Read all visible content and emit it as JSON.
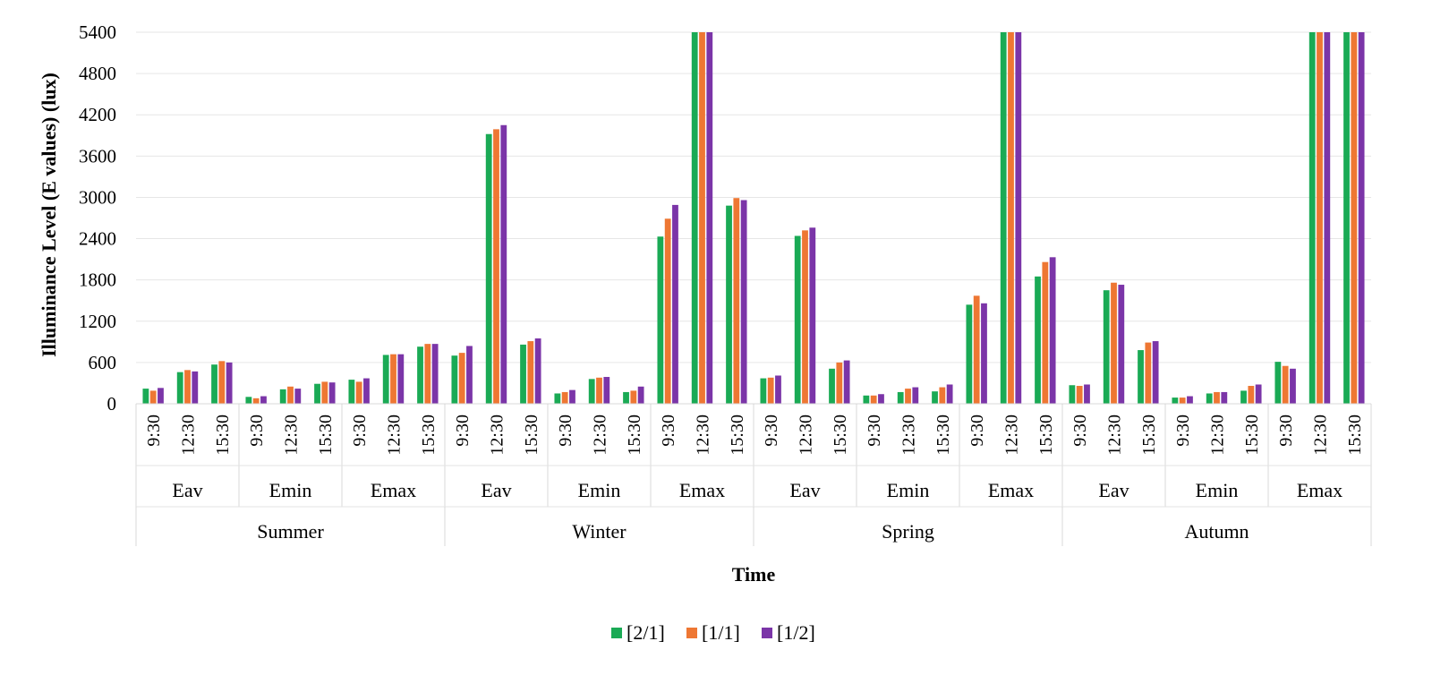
{
  "chart_data": {
    "type": "bar",
    "xlabel": "Time",
    "ylabel": "Illuminance Level (E values) (lux)",
    "ylim": [
      0,
      5400
    ],
    "yticks": [
      0,
      600,
      1200,
      1800,
      2400,
      3000,
      3600,
      4200,
      4800,
      5400
    ],
    "grid": "horizontal",
    "legend_position": "bottom",
    "seasons": [
      "Summer",
      "Winter",
      "Spring",
      "Autumn"
    ],
    "metrics": [
      "Eav",
      "Emin",
      "Emax"
    ],
    "times": [
      "9:30",
      "12:30",
      "15:30"
    ],
    "categories": [
      "Summer Eav 9:30",
      "Summer Eav 12:30",
      "Summer Eav 15:30",
      "Summer Emin 9:30",
      "Summer Emin 12:30",
      "Summer Emin 15:30",
      "Summer Emax 9:30",
      "Summer Emax 12:30",
      "Summer Emax 15:30",
      "Winter Eav 9:30",
      "Winter Eav 12:30",
      "Winter Eav 15:30",
      "Winter Emin 9:30",
      "Winter Emin 12:30",
      "Winter Emin 15:30",
      "Winter Emax 9:30",
      "Winter Emax 12:30",
      "Winter Emax 15:30",
      "Spring Eav 9:30",
      "Spring Eav 12:30",
      "Spring Eav 15:30",
      "Spring Emin 9:30",
      "Spring Emin 12:30",
      "Spring Emin 15:30",
      "Spring Emax 9:30",
      "Spring Emax 12:30",
      "Spring Emax 15:30",
      "Autumn Eav 9:30",
      "Autumn Eav 12:30",
      "Autumn Eav 15:30",
      "Autumn Emin 9:30",
      "Autumn Emin 12:30",
      "Autumn Emin 15:30",
      "Autumn Emax 9:30",
      "Autumn Emax 12:30",
      "Autumn Emax 15:30"
    ],
    "series": [
      {
        "name": "[2/1]",
        "color": "#1aaa55",
        "values": [
          220,
          460,
          570,
          100,
          210,
          290,
          350,
          710,
          830,
          700,
          3920,
          860,
          150,
          360,
          170,
          2430,
          5400,
          2880,
          370,
          2440,
          510,
          120,
          170,
          180,
          1440,
          5400,
          1850,
          270,
          1650,
          780,
          90,
          150,
          190,
          610,
          5400,
          5400
        ]
      },
      {
        "name": "[1/1]",
        "color": "#ee7733",
        "values": [
          190,
          490,
          620,
          80,
          250,
          320,
          320,
          720,
          870,
          740,
          3990,
          910,
          170,
          380,
          190,
          2690,
          5400,
          2990,
          380,
          2520,
          600,
          120,
          220,
          240,
          1570,
          5400,
          2060,
          260,
          1760,
          890,
          90,
          170,
          260,
          550,
          5400,
          5400
        ]
      },
      {
        "name": "[1/2]",
        "color": "#7b35a8",
        "values": [
          230,
          470,
          600,
          110,
          220,
          310,
          370,
          720,
          870,
          840,
          4050,
          950,
          200,
          390,
          250,
          2890,
          5400,
          2960,
          410,
          2560,
          630,
          140,
          240,
          280,
          1460,
          5400,
          2130,
          280,
          1730,
          910,
          110,
          170,
          280,
          510,
          5400,
          5400
        ]
      }
    ]
  }
}
